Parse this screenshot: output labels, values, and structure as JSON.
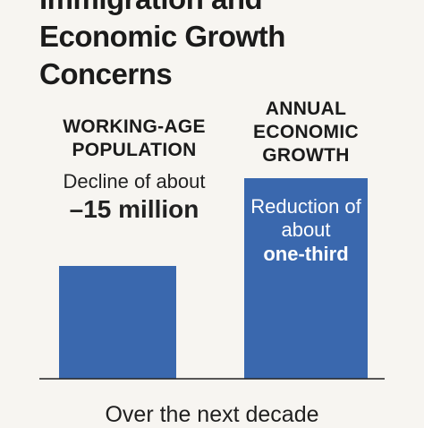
{
  "chart_data": {
    "type": "bar",
    "title_lines": [
      "Immigration and",
      "Economic Growth",
      "Concerns"
    ],
    "categories": [
      [
        "WORKING-AGE",
        "POPULATION"
      ],
      [
        "ANNUAL",
        "ECONOMIC",
        "GROWTH"
      ]
    ],
    "values": [
      0.45,
      0.8
    ],
    "annotations": [
      {
        "text": "Decline of about",
        "emphasis": "–15 million"
      },
      {
        "text": "Reduction of about",
        "emphasis": "one-third"
      }
    ],
    "footer": "Over the next decade",
    "bar_color": "#3a68ae"
  }
}
